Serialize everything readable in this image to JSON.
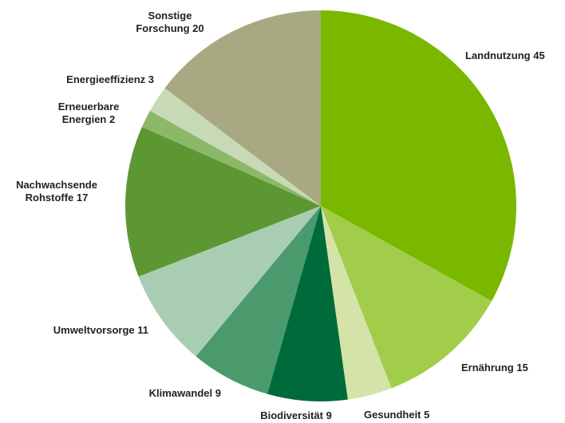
{
  "chart_data": {
    "type": "pie",
    "categories": [
      "Landnutzung",
      "Ernährung",
      "Gesundheit",
      "Biodiversität",
      "Klimawandel",
      "Umweltvorsorge",
      "Nachwachsende Rohstoffe",
      "Erneuerbare Energien",
      "Energieeffizienz",
      "Sonstige Forschung"
    ],
    "values": [
      45,
      15,
      5,
      9,
      9,
      11,
      17,
      2,
      3,
      20
    ],
    "colors": [
      "#7ab800",
      "#a2cd4a",
      "#d4e4a8",
      "#006b3a",
      "#4a9a6e",
      "#a9cdb3",
      "#5d9732",
      "#8cb86a",
      "#c7dab5",
      "#a8a882"
    ]
  }
}
